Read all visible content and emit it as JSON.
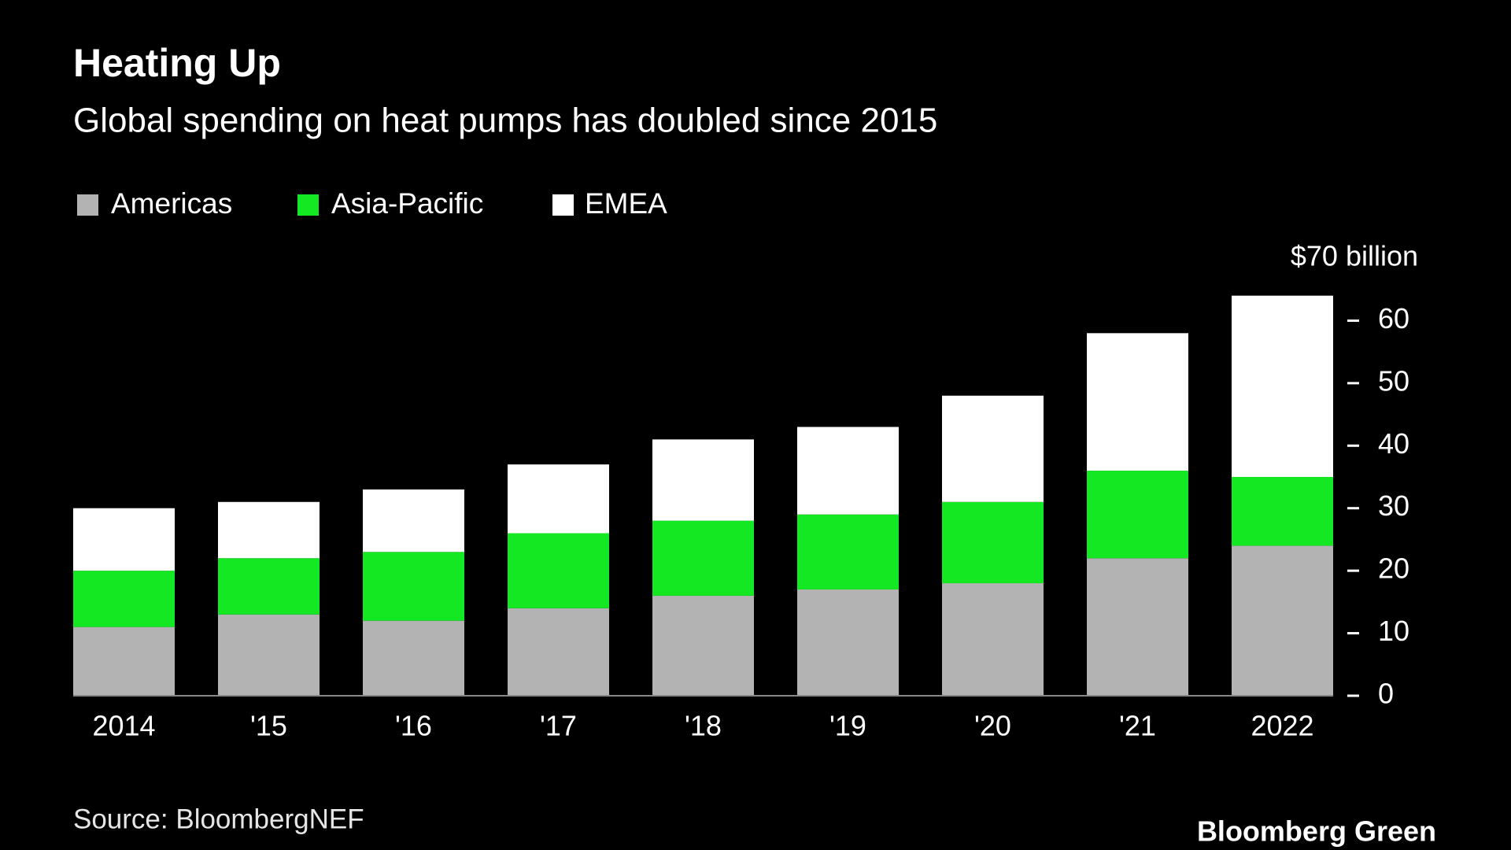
{
  "chart_data": {
    "type": "stacked_bar",
    "title": "Heating Up",
    "subtitle": "Global spending on heat pumps has doubled since 2015",
    "categories": [
      "2014",
      "'15",
      "'16",
      "'17",
      "'18",
      "'19",
      "'20",
      "'21",
      "2022"
    ],
    "series": [
      {
        "name": "Americas",
        "color": "#b3b3b3",
        "values": [
          11,
          13,
          12,
          14,
          16,
          17,
          18,
          22,
          24
        ]
      },
      {
        "name": "Asia-Pacific",
        "color": "#14e823",
        "values": [
          9,
          9,
          11,
          12,
          12,
          12,
          13,
          14,
          11
        ]
      },
      {
        "name": "EMEA",
        "color": "#ffffff",
        "values": [
          10,
          9,
          10,
          11,
          13,
          14,
          17,
          22,
          29
        ]
      }
    ],
    "ylim": [
      0,
      70
    ],
    "yticks": [
      0,
      10,
      20,
      30,
      40,
      50,
      60,
      {
        "value": 70,
        "label": "$70 billion"
      }
    ],
    "source": "Source: BloombergNEF",
    "brand": "Bloomberg Green"
  }
}
